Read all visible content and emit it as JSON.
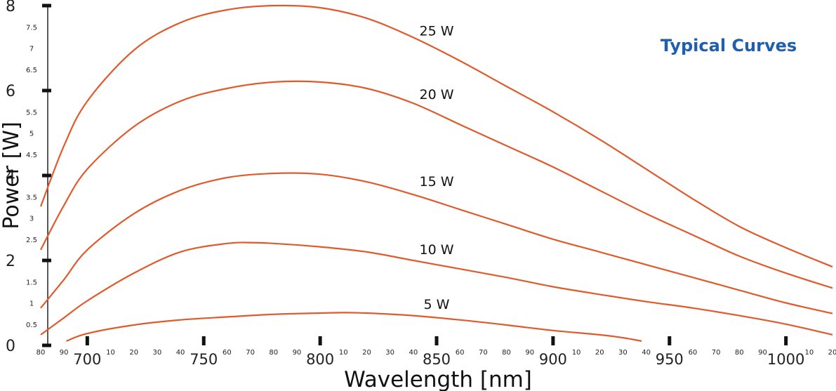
{
  "chart_data": {
    "type": "line",
    "title": "Typical Curves",
    "title_color": "#1f5fae",
    "curve_color": "#e05a2b",
    "xlabel": "Wavelength [nm]",
    "ylabel": "Power [W]",
    "xlim": [
      680,
      1020
    ],
    "ylim": [
      0,
      8
    ],
    "grid": false,
    "legend": "inline labels",
    "y_major_ticks": [
      {
        "v": 0,
        "label": "0"
      },
      {
        "v": 2,
        "label": "2"
      },
      {
        "v": 4,
        "label": "4"
      },
      {
        "v": 6,
        "label": "6"
      },
      {
        "v": 8,
        "label": "8"
      }
    ],
    "y_minor_ticks": [
      {
        "v": 0.5,
        "label": "0.5"
      },
      {
        "v": 1,
        "label": "1"
      },
      {
        "v": 1.5,
        "label": "1.5"
      },
      {
        "v": 2.5,
        "label": "2.5"
      },
      {
        "v": 3,
        "label": "3"
      },
      {
        "v": 3.5,
        "label": "3.5"
      },
      {
        "v": 4.5,
        "label": "4.5"
      },
      {
        "v": 5,
        "label": "5"
      },
      {
        "v": 5.5,
        "label": "5.5"
      },
      {
        "v": 6.5,
        "label": "6.5"
      },
      {
        "v": 7,
        "label": "7"
      },
      {
        "v": 7.5,
        "label": "7.5"
      }
    ],
    "x_major_ticks": [
      {
        "v": 700,
        "label": "700"
      },
      {
        "v": 750,
        "label": "750"
      },
      {
        "v": 800,
        "label": "800"
      },
      {
        "v": 850,
        "label": "850"
      },
      {
        "v": 900,
        "label": "900"
      },
      {
        "v": 950,
        "label": "950"
      },
      {
        "v": 1000,
        "label": "1000"
      }
    ],
    "x_minor_ticks": [
      {
        "v": 680,
        "label": "80"
      },
      {
        "v": 690,
        "label": "90"
      },
      {
        "v": 710,
        "label": "10"
      },
      {
        "v": 720,
        "label": "20"
      },
      {
        "v": 730,
        "label": "30"
      },
      {
        "v": 740,
        "label": "40"
      },
      {
        "v": 760,
        "label": "60"
      },
      {
        "v": 770,
        "label": "70"
      },
      {
        "v": 780,
        "label": "80"
      },
      {
        "v": 790,
        "label": "90"
      },
      {
        "v": 810,
        "label": "10"
      },
      {
        "v": 820,
        "label": "20"
      },
      {
        "v": 830,
        "label": "30"
      },
      {
        "v": 840,
        "label": "40"
      },
      {
        "v": 860,
        "label": "60"
      },
      {
        "v": 870,
        "label": "70"
      },
      {
        "v": 880,
        "label": "80"
      },
      {
        "v": 890,
        "label": "90"
      },
      {
        "v": 910,
        "label": "10"
      },
      {
        "v": 920,
        "label": "20"
      },
      {
        "v": 930,
        "label": "30"
      },
      {
        "v": 940,
        "label": "40"
      },
      {
        "v": 960,
        "label": "60"
      },
      {
        "v": 970,
        "label": "70"
      },
      {
        "v": 980,
        "label": "80"
      },
      {
        "v": 990,
        "label": "90"
      },
      {
        "v": 1010,
        "label": "10"
      },
      {
        "v": 1020,
        "label": "20"
      }
    ],
    "series": [
      {
        "name": "25 W",
        "label_at": [
          850,
          7.3
        ],
        "x": [
          680,
          690,
          700,
          720,
          740,
          760,
          780,
          800,
          820,
          840,
          860,
          880,
          900,
          920,
          940,
          960,
          980,
          1000,
          1020
        ],
        "y": [
          3.27,
          4.7,
          5.75,
          6.95,
          7.6,
          7.9,
          8.0,
          7.95,
          7.7,
          7.25,
          6.7,
          6.1,
          5.5,
          4.85,
          4.15,
          3.45,
          2.8,
          2.3,
          1.85
        ]
      },
      {
        "name": "20 W",
        "label_at": [
          850,
          5.8
        ],
        "x": [
          680,
          690,
          700,
          720,
          740,
          760,
          780,
          800,
          820,
          840,
          860,
          880,
          900,
          920,
          940,
          960,
          980,
          1000,
          1020
        ],
        "y": [
          2.25,
          3.3,
          4.15,
          5.15,
          5.75,
          6.05,
          6.2,
          6.2,
          6.05,
          5.7,
          5.2,
          4.7,
          4.2,
          3.65,
          3.1,
          2.6,
          2.1,
          1.7,
          1.35
        ]
      },
      {
        "name": "15 W",
        "label_at": [
          850,
          3.75
        ],
        "x": [
          680,
          690,
          700,
          720,
          740,
          760,
          780,
          800,
          820,
          840,
          860,
          880,
          900,
          920,
          940,
          960,
          980,
          1000,
          1020
        ],
        "y": [
          0.88,
          1.55,
          2.25,
          3.1,
          3.65,
          3.95,
          4.05,
          4.03,
          3.85,
          3.55,
          3.2,
          2.85,
          2.5,
          2.2,
          1.9,
          1.6,
          1.3,
          1.0,
          0.75
        ]
      },
      {
        "name": "10 W",
        "label_at": [
          850,
          2.15
        ],
        "x": [
          680,
          690,
          700,
          720,
          740,
          760,
          770,
          780,
          800,
          820,
          840,
          860,
          880,
          900,
          920,
          940,
          960,
          980,
          1000,
          1020
        ],
        "y": [
          0.25,
          0.65,
          1.05,
          1.7,
          2.2,
          2.4,
          2.42,
          2.4,
          2.32,
          2.2,
          2.0,
          1.8,
          1.6,
          1.38,
          1.2,
          1.03,
          0.88,
          0.7,
          0.5,
          0.25
        ]
      },
      {
        "name": "5 W",
        "label_at": [
          850,
          0.86
        ],
        "x": [
          691,
          700,
          720,
          740,
          760,
          780,
          800,
          810,
          820,
          840,
          860,
          880,
          900,
          920,
          930,
          938
        ],
        "y": [
          0.1,
          0.28,
          0.48,
          0.6,
          0.67,
          0.73,
          0.76,
          0.77,
          0.76,
          0.7,
          0.6,
          0.48,
          0.35,
          0.25,
          0.18,
          0.1
        ]
      }
    ]
  }
}
